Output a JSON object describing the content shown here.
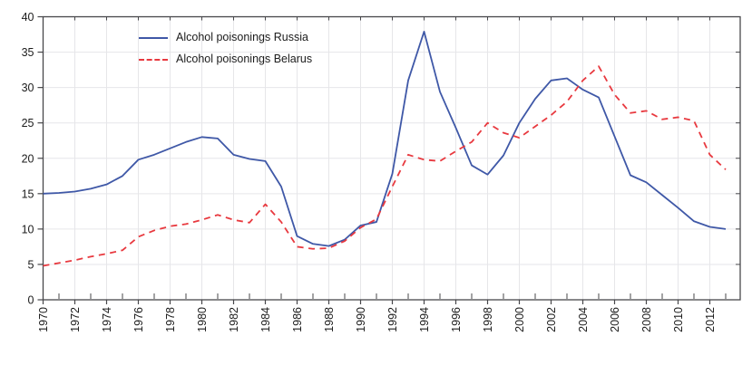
{
  "chart_data": {
    "type": "line",
    "title": "",
    "xlabel": "",
    "ylabel": "",
    "x": [
      1970,
      1971,
      1972,
      1973,
      1974,
      1975,
      1976,
      1977,
      1978,
      1979,
      1980,
      1981,
      1982,
      1983,
      1984,
      1985,
      1986,
      1987,
      1988,
      1989,
      1990,
      1991,
      1992,
      1993,
      1994,
      1995,
      1996,
      1997,
      1998,
      1999,
      2000,
      2001,
      2002,
      2003,
      2004,
      2005,
      2006,
      2007,
      2008,
      2009,
      2010,
      2011,
      2012,
      2013
    ],
    "series": [
      {
        "name": "Alcohol poisonings Russia",
        "color": "#3f58a7",
        "line_style": "solid",
        "values": [
          15.0,
          15.1,
          15.3,
          15.7,
          16.3,
          17.5,
          19.8,
          20.5,
          21.4,
          22.3,
          23.0,
          22.8,
          20.5,
          19.9,
          19.6,
          16.0,
          9.0,
          7.9,
          7.6,
          8.5,
          10.5,
          11.0,
          17.8,
          31.0,
          37.9,
          29.4,
          24.3,
          19.0,
          17.7,
          20.4,
          25.0,
          28.4,
          31.0,
          31.3,
          29.7,
          28.6,
          23.1,
          17.6,
          16.6,
          14.8,
          13.0,
          11.1,
          10.3,
          10.0
        ]
      },
      {
        "name": "Alcohol poisonings Belarus",
        "color": "#e8393f",
        "line_style": "dashed",
        "values": [
          4.8,
          5.2,
          5.6,
          6.1,
          6.5,
          7.0,
          8.9,
          9.8,
          10.4,
          10.7,
          11.3,
          12.0,
          11.3,
          10.9,
          13.5,
          11.0,
          7.5,
          7.2,
          7.3,
          8.3,
          10.2,
          11.4,
          16.0,
          20.5,
          19.8,
          19.6,
          21.0,
          22.3,
          25.0,
          23.6,
          22.9,
          24.5,
          26.1,
          28.0,
          31.0,
          33.0,
          29.0,
          26.4,
          26.7,
          25.5,
          25.8,
          25.3,
          20.5,
          18.4
        ]
      }
    ],
    "ylim": [
      0,
      40
    ],
    "ytick_step": 5,
    "ytick_labels": [
      "0",
      "5",
      "10",
      "15",
      "20",
      "25",
      "30",
      "35",
      "40"
    ],
    "xtick_labeled_years": [
      1970,
      1972,
      1974,
      1976,
      1978,
      1980,
      1982,
      1984,
      1986,
      1988,
      1990,
      1992,
      1994,
      1996,
      1998,
      2000,
      2002,
      2004,
      2006,
      2008,
      2010,
      2012
    ],
    "grid": true,
    "grid_color": "#e6e6e9",
    "frame_color": "#47474a",
    "legend_position": "inside top-left"
  }
}
